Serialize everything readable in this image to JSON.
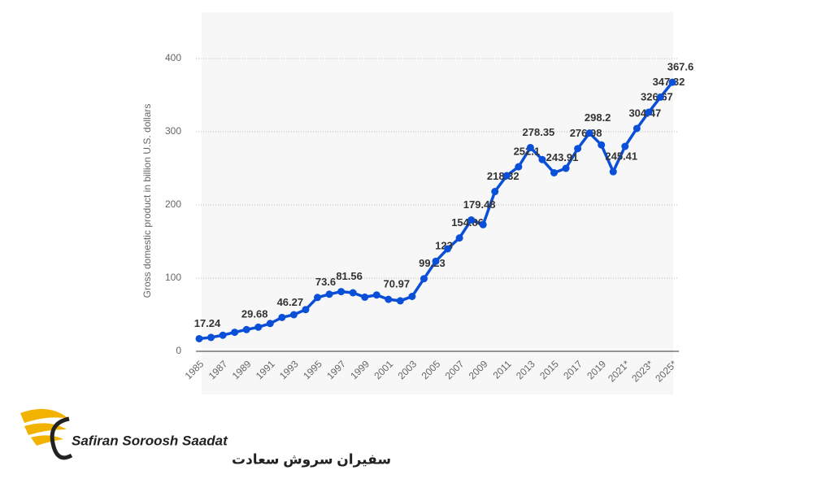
{
  "chart_data": {
    "type": "line",
    "y_label": "Gross domestic product in billion U.S. dollars",
    "categories": [
      "1985",
      null,
      "1987",
      null,
      "1989",
      null,
      "1991",
      null,
      "1993",
      null,
      "1995",
      null,
      "1997",
      null,
      "1999",
      null,
      "2001",
      null,
      "2003",
      null,
      "2005",
      null,
      "2007",
      null,
      "2009",
      null,
      "2011",
      null,
      "2013",
      null,
      "2015",
      null,
      "2017",
      null,
      "2019",
      null,
      "2021*",
      null,
      "2023*",
      null,
      "2025*"
    ],
    "series": [
      {
        "name": "GDP",
        "color": "#0a4fd8",
        "values": [
          17.24,
          19,
          22,
          26,
          29.68,
          33,
          38,
          46.27,
          50,
          57,
          73.6,
          78,
          81.56,
          80,
          74,
          77,
          70.97,
          69,
          75,
          99.23,
          123,
          140,
          154.86,
          179.48,
          173,
          218.32,
          240,
          252.1,
          278.35,
          262,
          243.91,
          250,
          276.98,
          298.2,
          282,
          245.41,
          280,
          304.47,
          326.67,
          347.32,
          367.6
        ],
        "value_labels": [
          "17.24",
          null,
          null,
          null,
          "29.68",
          null,
          null,
          "46.27",
          null,
          null,
          "73.6",
          null,
          "81.56",
          null,
          null,
          null,
          "70.97",
          null,
          null,
          "99.23",
          "123",
          null,
          "154.86",
          "179.48",
          null,
          "218.32",
          null,
          "252.1",
          "278.35",
          null,
          "243.91",
          null,
          "276.98",
          "298.2",
          null,
          "245.41",
          null,
          "304.47",
          "326.67",
          "347.32",
          "367.6"
        ]
      }
    ],
    "ylim": [
      0,
      400
    ],
    "yticks": [
      0,
      100,
      200,
      300,
      400
    ],
    "grid": true,
    "logo": {
      "name": "Safiran Soroosh Saadat",
      "name_fa": "سفیران سروش سعادت"
    }
  }
}
